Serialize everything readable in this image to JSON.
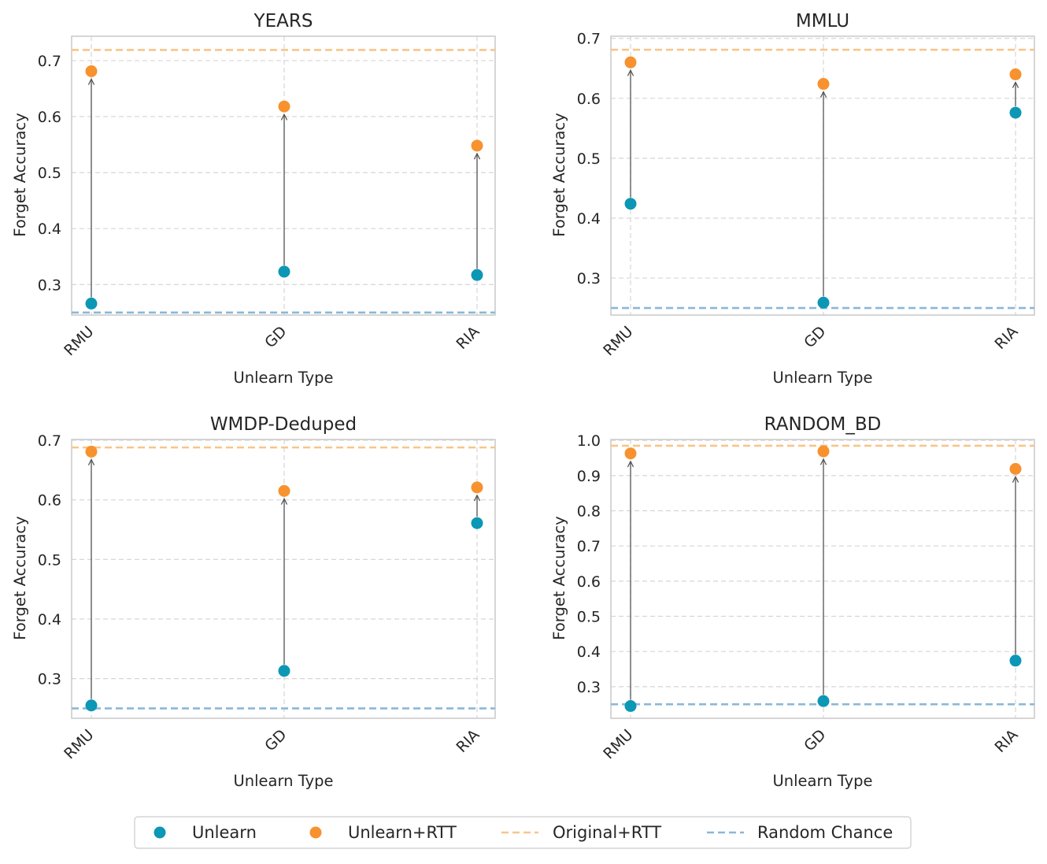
{
  "colors": {
    "unlearn": "#0c97b5",
    "unlearn_rtt": "#f7922e",
    "original_rtt": "#f8c58a",
    "random_chance": "#8ab8d8",
    "arrow": "#555555",
    "grid": "#d6d6d6",
    "spine": "#c9c9c9"
  },
  "legend": {
    "unlearn": "Unlearn",
    "unlearn_rtt": "Unlearn+RTT",
    "original_rtt": "Original+RTT",
    "random_chance": "Random Chance"
  },
  "chart_data": [
    {
      "type": "scatter",
      "title": "YEARS",
      "xlabel": "Unlearn Type",
      "ylabel": "Forget Accuracy",
      "categories": [
        "RMU",
        "GD",
        "RIA"
      ],
      "series": [
        {
          "name": "Unlearn",
          "values": [
            0.266,
            0.323,
            0.317
          ]
        },
        {
          "name": "Unlearn+RTT",
          "values": [
            0.681,
            0.618,
            0.548
          ]
        }
      ],
      "original_rtt": 0.719,
      "random_chance": 0.25,
      "ylim": [
        0.2455,
        0.7435
      ],
      "yticks": [
        "0.3",
        "0.4",
        "0.5",
        "0.6",
        "0.7"
      ]
    },
    {
      "type": "scatter",
      "title": "MMLU",
      "xlabel": "Unlearn Type",
      "ylabel": "Forget Accuracy",
      "categories": [
        "RMU",
        "GD",
        "RIA"
      ],
      "series": [
        {
          "name": "Unlearn",
          "values": [
            0.424,
            0.259,
            0.576
          ]
        },
        {
          "name": "Unlearn+RTT",
          "values": [
            0.66,
            0.624,
            0.64
          ]
        }
      ],
      "original_rtt": 0.681,
      "random_chance": 0.25,
      "ylim": [
        0.2383,
        0.7036
      ],
      "yticks": [
        "0.3",
        "0.4",
        "0.5",
        "0.6",
        "0.7"
      ]
    },
    {
      "type": "scatter",
      "title": "WMDP-Deduped",
      "xlabel": "Unlearn Type",
      "ylabel": "Forget Accuracy",
      "categories": [
        "RMU",
        "GD",
        "RIA"
      ],
      "series": [
        {
          "name": "Unlearn",
          "values": [
            0.255,
            0.313,
            0.561
          ]
        },
        {
          "name": "Unlearn+RTT",
          "values": [
            0.681,
            0.615,
            0.621
          ]
        }
      ],
      "original_rtt": 0.688,
      "random_chance": 0.25,
      "ylim": [
        0.2334,
        0.7014
      ],
      "yticks": [
        "0.3",
        "0.4",
        "0.5",
        "0.6",
        "0.7"
      ]
    },
    {
      "type": "scatter",
      "title": "RANDOM_BD",
      "xlabel": "Unlearn Type",
      "ylabel": "Forget Accuracy",
      "categories": [
        "RMU",
        "GD",
        "RIA"
      ],
      "series": [
        {
          "name": "Unlearn",
          "values": [
            0.245,
            0.259,
            0.374
          ]
        },
        {
          "name": "Unlearn+RTT",
          "values": [
            0.963,
            0.969,
            0.919
          ]
        }
      ],
      "original_rtt": 0.985,
      "random_chance": 0.25,
      "ylim": [
        0.2101,
        1.0027
      ],
      "yticks": [
        "0.3",
        "0.4",
        "0.5",
        "0.6",
        "0.7",
        "0.8",
        "0.9",
        "1.0"
      ]
    }
  ]
}
